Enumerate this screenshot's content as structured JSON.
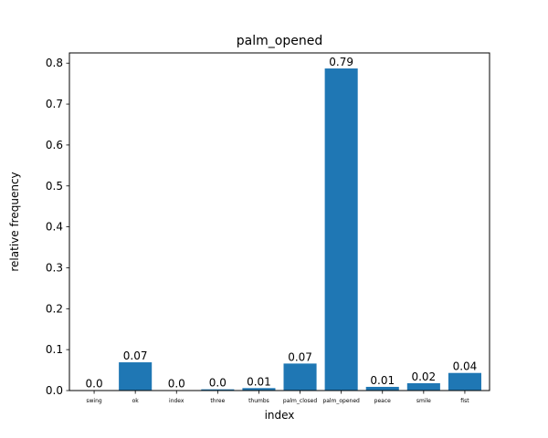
{
  "chart_data": {
    "type": "bar",
    "title": "palm_opened",
    "xlabel": "index",
    "ylabel": "relative frequency",
    "categories": [
      "swing",
      "ok",
      "index",
      "three",
      "thumbs",
      "palm_closed",
      "palm_opened",
      "peace",
      "smile",
      "fist"
    ],
    "values": [
      0.001,
      0.069,
      0.001,
      0.003,
      0.006,
      0.066,
      0.787,
      0.009,
      0.018,
      0.043
    ],
    "data_labels": [
      "0.0",
      "0.07",
      "0.0",
      "0.0",
      "0.01",
      "0.07",
      "0.79",
      "0.01",
      "0.02",
      "0.04"
    ],
    "ylim": [
      0,
      0.825
    ],
    "yticks": [
      0.0,
      0.1,
      0.2,
      0.3,
      0.4,
      0.5,
      0.6,
      0.7,
      0.8
    ],
    "ytick_labels": [
      "0.0",
      "0.1",
      "0.2",
      "0.3",
      "0.4",
      "0.5",
      "0.6",
      "0.7",
      "0.8"
    ],
    "grid": false,
    "bar_color": "#1f77b4"
  }
}
